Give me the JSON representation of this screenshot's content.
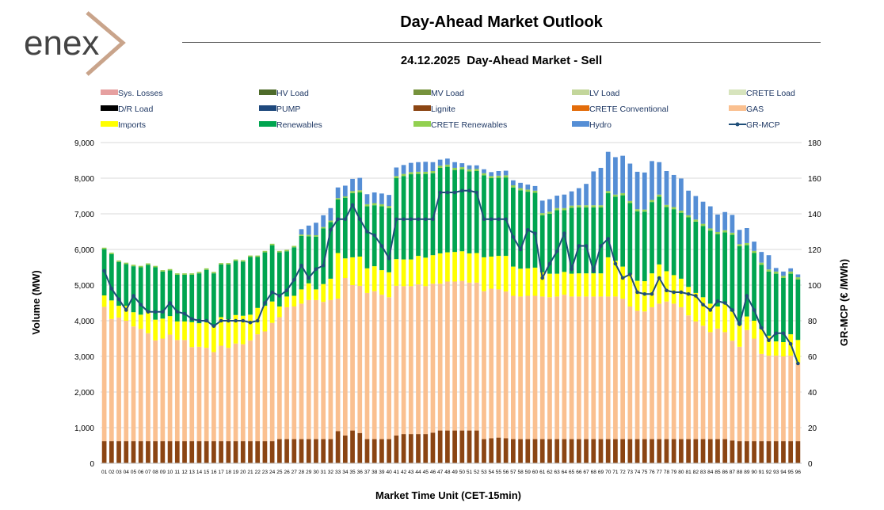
{
  "header": {
    "brand": "enex",
    "title": "Day-Ahead Market Outlook",
    "subtitle": "24.12.2025  Day-Ahead Market - Sell"
  },
  "chart_data": {
    "type": "bar",
    "stacked": true,
    "title": "24.12.2025  Day-Ahead Market - Sell",
    "xlabel": "Market Time Unit (CET-15min)",
    "ylabel": "Volume (MW)",
    "y2label": "GR-MCP (€ /MWh)",
    "ylim": [
      0,
      9000
    ],
    "y2lim": [
      0,
      180
    ],
    "yticks": [
      "0",
      "1,000",
      "2,000",
      "3,000",
      "4,000",
      "5,000",
      "6,000",
      "7,000",
      "8,000",
      "9,000"
    ],
    "y2ticks": [
      "0",
      "20",
      "40",
      "60",
      "80",
      "100",
      "120",
      "140",
      "160",
      "180"
    ],
    "grid": true,
    "legend_position": "top",
    "legend": [
      {
        "name": "Sys. Losses",
        "color": "#e6a0a0"
      },
      {
        "name": "HV Load",
        "color": "#4e6b2a"
      },
      {
        "name": "MV Load",
        "color": "#76923c"
      },
      {
        "name": "LV Load",
        "color": "#c3d69b"
      },
      {
        "name": "CRETE Load",
        "color": "#d7e4bd"
      },
      {
        "name": "D/R Load",
        "color": "#000000"
      },
      {
        "name": "PUMP",
        "color": "#1f497d"
      },
      {
        "name": "Lignite",
        "color": "#8b4513"
      },
      {
        "name": "CRETE Conventional",
        "color": "#e36c0a"
      },
      {
        "name": "GAS",
        "color": "#fac090"
      },
      {
        "name": "Imports",
        "color": "#ffff00"
      },
      {
        "name": "Renewables",
        "color": "#00a550"
      },
      {
        "name": "CRETE Renewables",
        "color": "#92d050"
      },
      {
        "name": "Hydro",
        "color": "#558ed5"
      },
      {
        "name": "GR-MCP",
        "color": "#1f4e79"
      }
    ],
    "categories": [
      "01",
      "02",
      "03",
      "04",
      "05",
      "06",
      "07",
      "08",
      "09",
      "10",
      "11",
      "12",
      "13",
      "14",
      "15",
      "16",
      "17",
      "18",
      "19",
      "20",
      "21",
      "22",
      "23",
      "24",
      "25",
      "26",
      "27",
      "28",
      "29",
      "30",
      "31",
      "32",
      "33",
      "34",
      "35",
      "36",
      "37",
      "38",
      "39",
      "40",
      "41",
      "42",
      "43",
      "44",
      "45",
      "46",
      "47",
      "48",
      "49",
      "50",
      "51",
      "52",
      "53",
      "54",
      "55",
      "56",
      "57",
      "58",
      "59",
      "60",
      "61",
      "62",
      "63",
      "64",
      "65",
      "66",
      "67",
      "68",
      "69",
      "70",
      "71",
      "72",
      "73",
      "74",
      "75",
      "76",
      "77",
      "78",
      "79",
      "80",
      "81",
      "82",
      "83",
      "84",
      "85",
      "86",
      "87",
      "88",
      "89",
      "90",
      "91",
      "92",
      "93",
      "94",
      "95",
      "96"
    ],
    "series": [
      {
        "name": "Lignite",
        "values": [
          620,
          620,
          620,
          620,
          620,
          620,
          620,
          620,
          620,
          620,
          620,
          620,
          620,
          620,
          620,
          620,
          620,
          620,
          620,
          620,
          620,
          620,
          620,
          620,
          680,
          680,
          680,
          680,
          680,
          680,
          680,
          680,
          900,
          780,
          920,
          850,
          680,
          680,
          680,
          680,
          780,
          820,
          820,
          820,
          820,
          860,
          920,
          920,
          920,
          920,
          920,
          920,
          680,
          700,
          720,
          700,
          680,
          680,
          680,
          680,
          680,
          680,
          680,
          680,
          680,
          680,
          680,
          680,
          680,
          680,
          680,
          680,
          680,
          680,
          680,
          680,
          680,
          680,
          680,
          680,
          680,
          680,
          680,
          680,
          680,
          680,
          640,
          620,
          620,
          620,
          620,
          620,
          620,
          620,
          620,
          620
        ]
      },
      {
        "name": "GAS",
        "values": [
          3770,
          3430,
          3470,
          3380,
          3220,
          3150,
          3030,
          2830,
          2880,
          2990,
          2840,
          2840,
          2640,
          2650,
          2620,
          2500,
          2680,
          2620,
          2740,
          2720,
          2830,
          3000,
          3080,
          3320,
          3420,
          3700,
          3720,
          3800,
          3900,
          3900,
          3850,
          3900,
          3720,
          4420,
          4080,
          4130,
          4100,
          4150,
          4050,
          3980,
          4200,
          4150,
          4150,
          4200,
          4150,
          4180,
          4120,
          4180,
          4180,
          4200,
          4150,
          4150,
          4150,
          4200,
          4160,
          4120,
          4020,
          4000,
          4020,
          4020,
          4000,
          3980,
          4000,
          4050,
          4000,
          4000,
          4000,
          4000,
          4000,
          4000,
          4000,
          3940,
          3720,
          3600,
          3580,
          3700,
          3800,
          3860,
          3800,
          3700,
          3470,
          3300,
          3180,
          3000,
          3100,
          3000,
          2800,
          2650,
          3120,
          2880,
          2450,
          2400,
          2400,
          2380,
          2400,
          2200
        ]
      },
      {
        "name": "Imports",
        "values": [
          320,
          520,
          330,
          420,
          400,
          400,
          600,
          580,
          560,
          520,
          520,
          520,
          700,
          660,
          720,
          720,
          800,
          800,
          800,
          800,
          720,
          740,
          720,
          600,
          300,
          300,
          300,
          400,
          470,
          300,
          500,
          600,
          1280,
          550,
          780,
          820,
          690,
          700,
          690,
          700,
          750,
          750,
          750,
          800,
          800,
          800,
          850,
          820,
          830,
          830,
          820,
          830,
          950,
          900,
          940,
          1000,
          820,
          780,
          770,
          790,
          680,
          660,
          640,
          640,
          640,
          650,
          650,
          650,
          650,
          1100,
          1000,
          900,
          900,
          840,
          850,
          950,
          1100,
          850,
          800,
          800,
          800,
          800,
          800,
          800,
          620,
          800,
          820,
          620,
          380,
          500,
          700,
          560,
          400,
          400,
          600,
          640
        ]
      },
      {
        "name": "Renewables",
        "values": [
          1300,
          1300,
          1230,
          1170,
          1290,
          1330,
          1320,
          1470,
          1320,
          1280,
          1310,
          1310,
          1330,
          1400,
          1470,
          1490,
          1480,
          1540,
          1520,
          1520,
          1620,
          1430,
          1500,
          1580,
          1520,
          1270,
          1360,
          1500,
          1320,
          1480,
          1560,
          1590,
          1500,
          1700,
          1800,
          1800,
          1740,
          1710,
          1790,
          1800,
          2270,
          2340,
          2390,
          2300,
          2350,
          2300,
          2400,
          2400,
          2300,
          2300,
          2300,
          2300,
          2300,
          2200,
          2190,
          2200,
          2220,
          2200,
          2150,
          2100,
          1600,
          1680,
          1780,
          1730,
          1850,
          1850,
          1850,
          1850,
          1850,
          1800,
          1800,
          2000,
          2000,
          1950,
          1950,
          2000,
          1900,
          1800,
          1850,
          1850,
          1950,
          2000,
          2000,
          2050,
          2030,
          2000,
          2150,
          2200,
          2000,
          1900,
          1800,
          1800,
          1900,
          1800,
          1700,
          1700
        ]
      },
      {
        "name": "CRETE Renewables",
        "values": [
          40,
          40,
          40,
          40,
          40,
          40,
          40,
          40,
          40,
          40,
          40,
          40,
          40,
          40,
          40,
          40,
          40,
          40,
          40,
          40,
          40,
          40,
          40,
          40,
          40,
          40,
          40,
          40,
          40,
          40,
          40,
          40,
          40,
          40,
          60,
          60,
          60,
          60,
          60,
          60,
          60,
          60,
          60,
          60,
          60,
          60,
          60,
          60,
          60,
          60,
          60,
          60,
          60,
          60,
          60,
          60,
          60,
          60,
          60,
          60,
          60,
          60,
          60,
          60,
          60,
          60,
          60,
          60,
          60,
          60,
          60,
          60,
          60,
          60,
          60,
          60,
          60,
          60,
          60,
          60,
          60,
          60,
          60,
          60,
          60,
          60,
          60,
          60,
          60,
          60,
          60,
          60,
          60,
          60,
          60,
          60
        ]
      },
      {
        "name": "Hydro",
        "values": [
          0,
          0,
          0,
          0,
          0,
          0,
          0,
          0,
          0,
          0,
          0,
          0,
          0,
          0,
          0,
          0,
          0,
          0,
          0,
          0,
          0,
          0,
          0,
          0,
          0,
          0,
          0,
          150,
          260,
          350,
          330,
          350,
          300,
          300,
          340,
          350,
          280,
          300,
          300,
          310,
          240,
          250,
          260,
          270,
          280,
          250,
          170,
          170,
          160,
          110,
          110,
          100,
          110,
          110,
          130,
          130,
          140,
          150,
          140,
          130,
          350,
          350,
          350,
          380,
          400,
          480,
          600,
          950,
          1050,
          1100,
          1050,
          1050,
          1050,
          1050,
          1040,
          1090,
          910,
          950,
          900,
          900,
          690,
          660,
          620,
          620,
          490,
          510,
          500,
          400,
          420,
          260,
          300,
          400,
          100,
          120,
          90,
          80
        ]
      }
    ],
    "line_series": {
      "name": "GR-MCP",
      "axis": "right",
      "values": [
        108,
        98,
        92,
        86,
        94,
        89,
        85,
        85,
        85,
        90,
        85,
        84,
        81,
        80,
        80,
        77,
        80,
        80,
        80,
        80,
        79,
        80,
        90,
        96,
        94,
        97,
        103,
        111,
        104,
        109,
        111,
        131,
        137,
        137,
        145,
        137,
        130,
        128,
        122,
        115,
        137,
        137,
        137,
        137,
        137,
        137,
        152,
        152,
        152,
        153,
        153,
        152,
        137,
        137,
        137,
        137,
        127,
        120,
        131,
        129,
        104,
        112,
        119,
        129,
        109,
        122,
        122,
        108,
        122,
        126,
        112,
        104,
        106,
        96,
        95,
        95,
        104,
        97,
        96,
        96,
        95,
        94,
        89,
        86,
        91,
        90,
        86,
        78,
        94,
        86,
        76,
        69,
        73,
        73,
        67,
        56
      ]
    }
  }
}
